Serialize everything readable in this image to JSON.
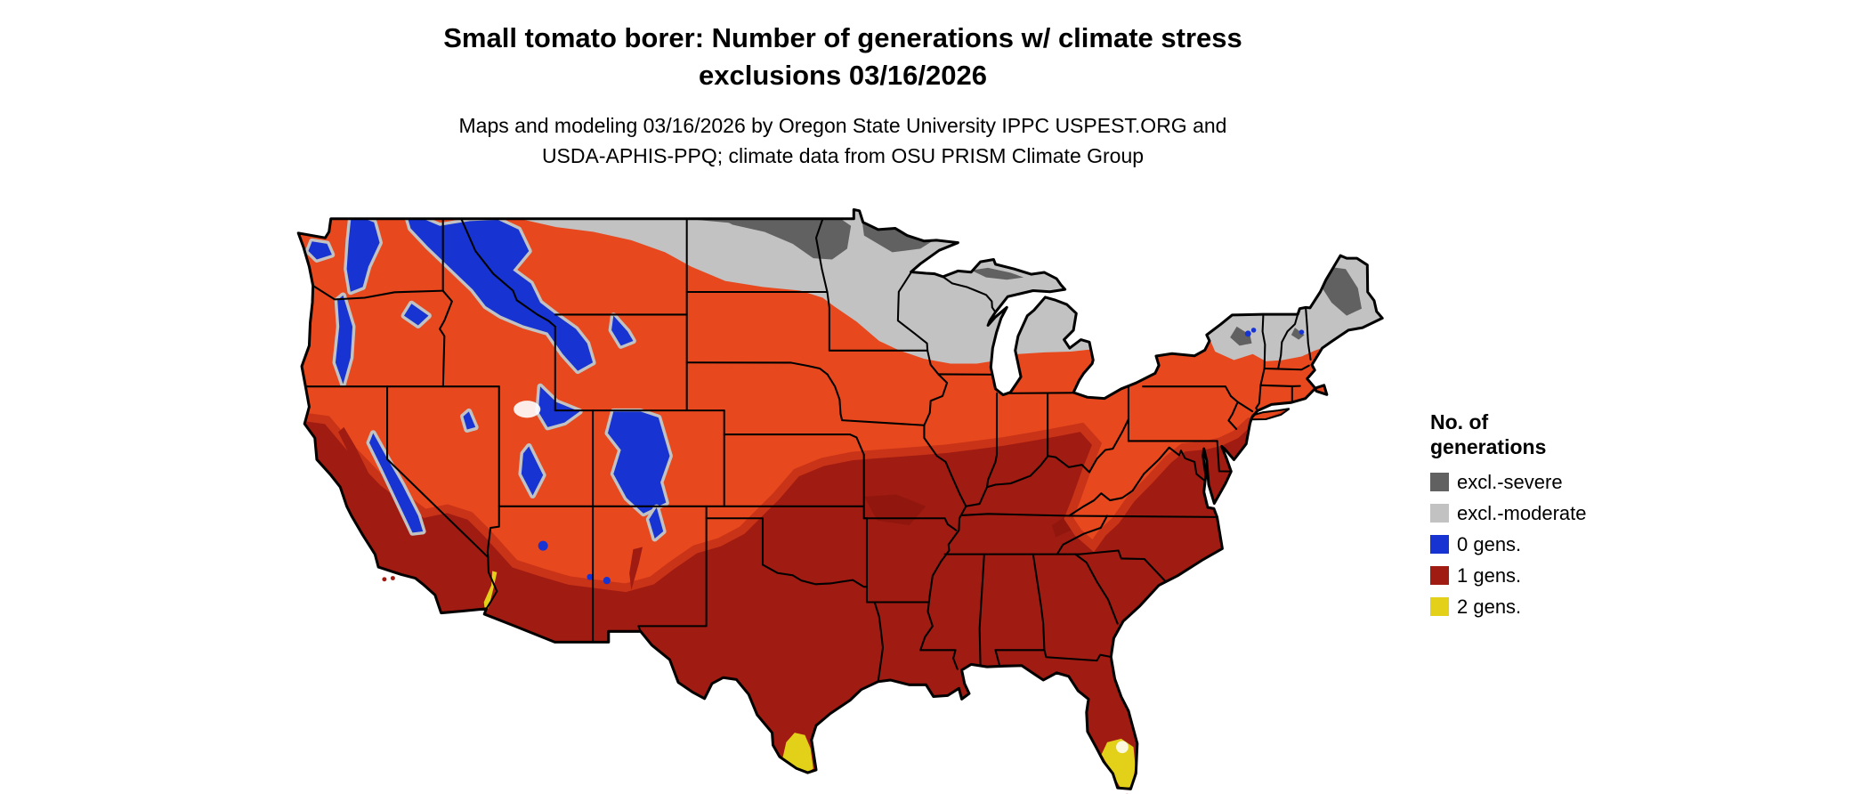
{
  "page": {
    "background": "#ffffff"
  },
  "title": {
    "line1": "Small tomato borer: Number of generations w/ climate stress",
    "line2": "exclusions 03/16/2026"
  },
  "subtitle": {
    "line1": "Maps and modeling 03/16/2026 by Oregon State University IPPC USPEST.ORG and",
    "line2": "USDA-APHIS-PPQ; climate data from OSU PRISM Climate Group"
  },
  "legend": {
    "title_line1": "No. of",
    "title_line2": "generations",
    "items": [
      {
        "label": "excl.-severe",
        "color": "#616161"
      },
      {
        "label": "excl.-moderate",
        "color": "#c2c2c2"
      },
      {
        "label": "0 gens.",
        "color": "#1733d1"
      },
      {
        "label": "1 gens.",
        "color": "#a01b11"
      },
      {
        "label": "2 gens.",
        "color": "#e3d119"
      }
    ]
  },
  "map": {
    "name": "contiguous-united-states",
    "shade_colors": {
      "orange_shade": "#e8481d",
      "transition": "#c93318",
      "deep_red_shade": "#7f140c",
      "water_background": "#ffffff",
      "border_line": "#000000"
    }
  }
}
